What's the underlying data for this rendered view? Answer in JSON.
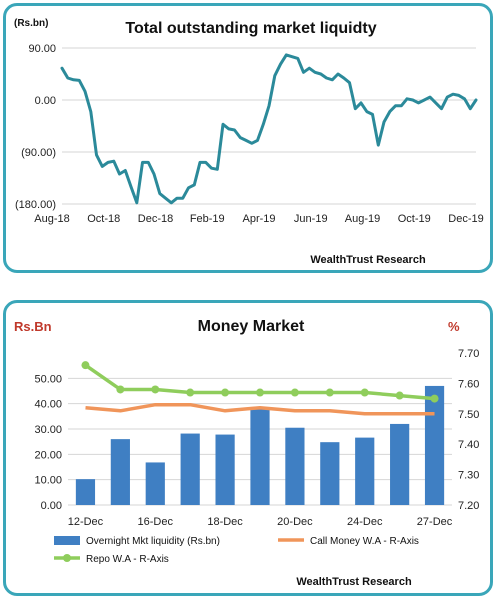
{
  "colors": {
    "panel_border": "#3aa6b9",
    "liquidity_line": "#2b8a9a",
    "bar": "#3f7fc3",
    "call_money": "#f0955a",
    "repo": "#8fcd5c",
    "unit_red": "#c0392b"
  },
  "chart_data": [
    {
      "type": "line",
      "title": "Total outstanding market liquidty",
      "unit_label": "(Rs.bn)",
      "credit": "WealthTrust Research",
      "ylim": [
        -180,
        90
      ],
      "y_ticks": [
        "90.00",
        "0.00",
        "(90.00)",
        "(180.00)"
      ],
      "y_tick_values": [
        90,
        0,
        -90,
        -180
      ],
      "x_ticks": [
        "Aug-18",
        "Oct-18",
        "Dec-18",
        "Feb-19",
        "Apr-19",
        "Jun-19",
        "Aug-19",
        "Oct-19",
        "Dec-19"
      ],
      "grid": "horizontal",
      "series": [
        {
          "values": [
            55,
            38,
            35,
            34,
            15,
            -20,
            -95,
            -115,
            -108,
            -106,
            -128,
            -122,
            -150,
            -178,
            -108,
            -108,
            -128,
            -162,
            -170,
            -178,
            -170,
            -170,
            -152,
            -147,
            -108,
            -108,
            -118,
            -120,
            -42,
            -50,
            -52,
            -65,
            -70,
            -75,
            -70,
            -42,
            -10,
            42,
            62,
            78,
            75,
            72,
            48,
            55,
            48,
            45,
            38,
            35,
            45,
            38,
            30,
            -15,
            -5,
            -20,
            -25,
            -78,
            -38,
            -20,
            -10,
            -10,
            2,
            0,
            -5,
            0,
            5,
            -5,
            -15,
            5,
            10,
            8,
            2,
            -15,
            0
          ]
        }
      ]
    },
    {
      "type": "bar",
      "title": "Money Market",
      "left_unit": "Rs.Bn",
      "right_unit": "%",
      "credit": "WealthTrust Research",
      "ylim": [
        0,
        60
      ],
      "y2lim": [
        7.2,
        7.7
      ],
      "y_ticks": [
        "0.00",
        "10.00",
        "20.00",
        "30.00",
        "40.00",
        "50.00"
      ],
      "y2_ticks": [
        "7.20",
        "7.30",
        "7.40",
        "7.50",
        "7.60",
        "7.70"
      ],
      "x_ticks": [
        "12-Dec",
        "16-Dec",
        "18-Dec",
        "20-Dec",
        "24-Dec",
        "27-Dec"
      ],
      "grid": "horizontal",
      "legend": "bottom",
      "series": [
        {
          "name": "Overnight Mkt liquidity (Rs.bn)",
          "axis": "left",
          "kind": "bar",
          "values": [
            10.2,
            26.0,
            16.8,
            28.2,
            27.8,
            38.5,
            30.5,
            24.8,
            26.6,
            32.0,
            47.0
          ]
        },
        {
          "name": "Call Money W.A - R-Axis",
          "axis": "right",
          "kind": "line",
          "values": [
            7.52,
            7.51,
            7.53,
            7.53,
            7.51,
            7.52,
            7.51,
            7.51,
            7.5,
            7.5,
            7.5
          ]
        },
        {
          "name": "Repo W.A - R-Axis",
          "axis": "right",
          "kind": "line-markers",
          "values": [
            7.66,
            7.58,
            7.58,
            7.57,
            7.57,
            7.57,
            7.57,
            7.57,
            7.57,
            7.56,
            7.55
          ]
        }
      ]
    }
  ]
}
